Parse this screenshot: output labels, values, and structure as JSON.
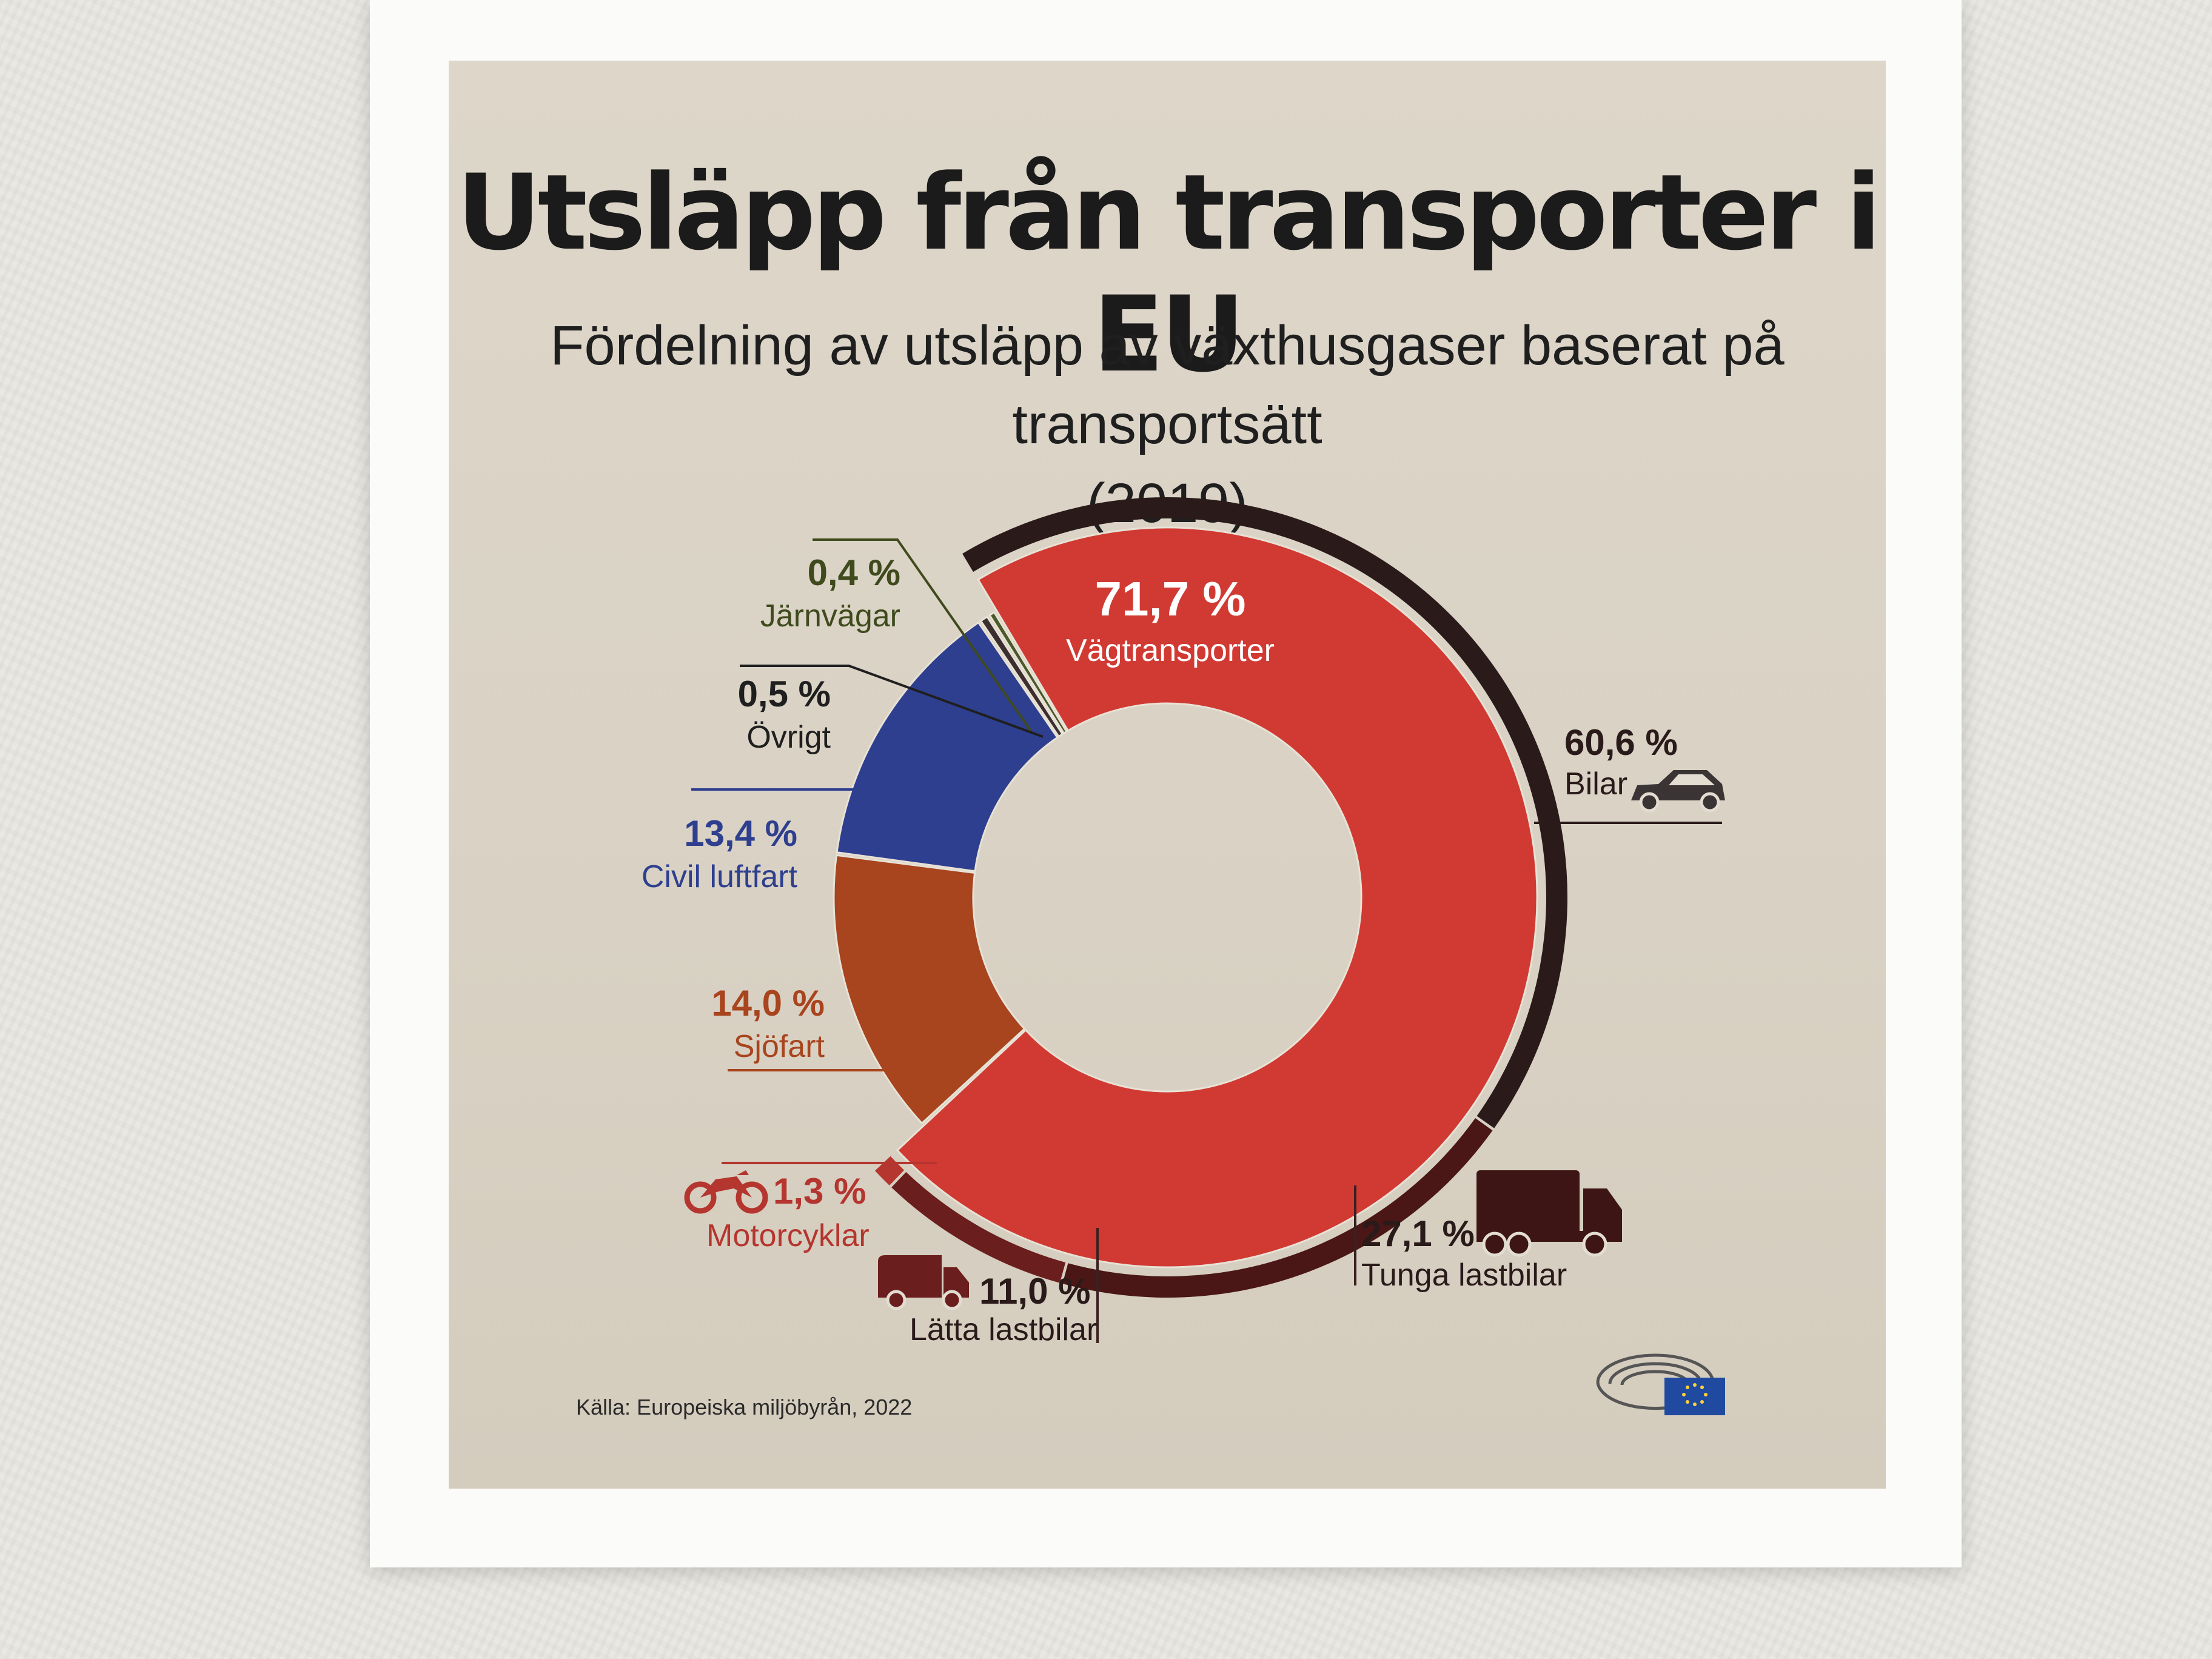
{
  "chart_data": {
    "type": "donut",
    "title": "Utsläpp från transporter i EU",
    "subtitle_line1": "Fördelning av utsläpp av växthusgaser baserat på transportsätt",
    "subtitle_line2": "(2019)",
    "inner_ring": [
      {
        "label": "Vägtransporter",
        "value": 71.7,
        "value_text": "71,7 %",
        "color": "#d13a33"
      },
      {
        "label": "Sjöfart",
        "value": 14.0,
        "value_text": "14,0 %",
        "color": "#a8441e"
      },
      {
        "label": "Civil luftfart",
        "value": 13.4,
        "value_text": "13,4 %",
        "color": "#2f3f8f"
      },
      {
        "label": "Övrigt",
        "value": 0.5,
        "value_text": "0,5 %",
        "color": "#3a2e2e"
      },
      {
        "label": "Järnvägar",
        "value": 0.4,
        "value_text": "0,4 %",
        "color": "#4a5a2a"
      }
    ],
    "road_breakdown": [
      {
        "label": "Bilar",
        "value": 60.6,
        "value_text": "60,6 %",
        "color": "#2a1a1a",
        "icon": "car-icon"
      },
      {
        "label": "Tunga lastbilar",
        "value": 27.1,
        "value_text": "27,1 %",
        "color": "#4a1616",
        "icon": "truck-icon"
      },
      {
        "label": "Lätta lastbilar",
        "value": 11.0,
        "value_text": "11,0 %",
        "color": "#6b1e1e",
        "icon": "van-icon"
      },
      {
        "label": "Motorcyklar",
        "value": 1.3,
        "value_text": "1,3 %",
        "color": "#b5352f",
        "icon": "motorcycle-icon"
      }
    ]
  },
  "source": "Källa: Europeiska miljöbyrån, 2022",
  "logo": "european-parliament-logo"
}
